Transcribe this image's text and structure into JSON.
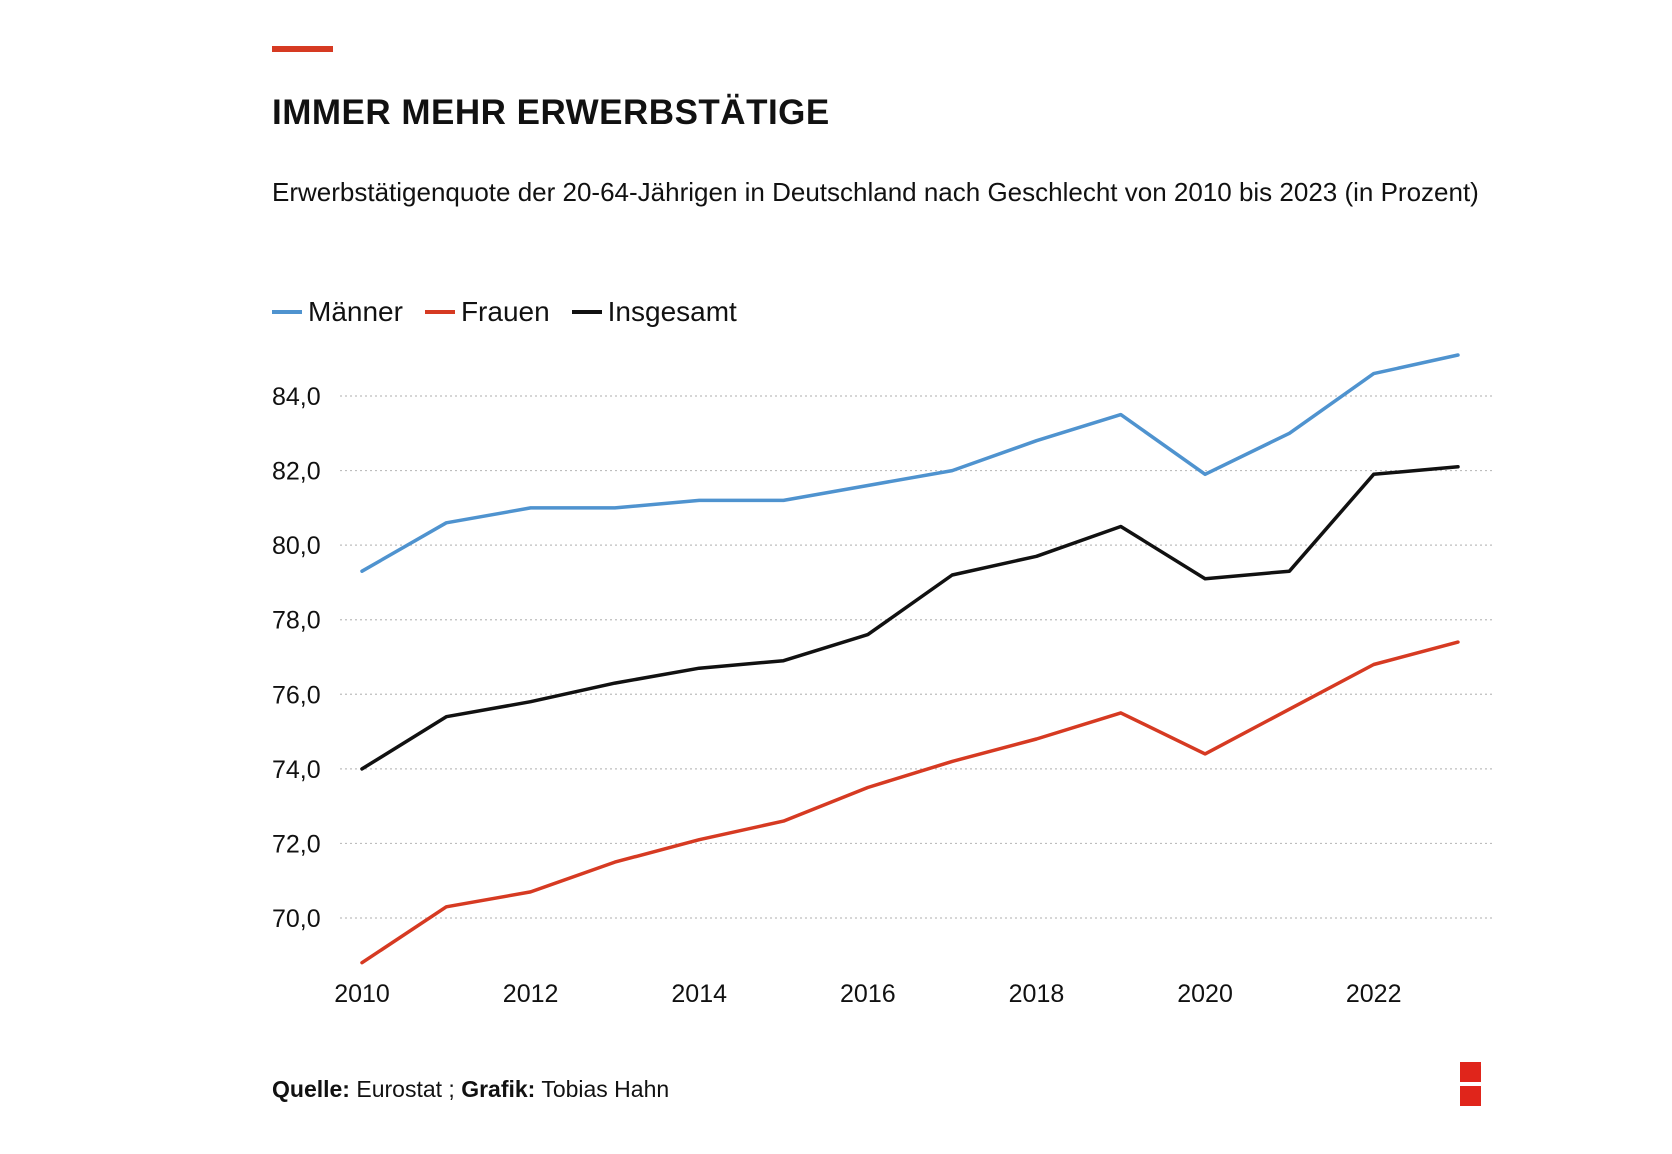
{
  "header": {
    "title": "IMMER MEHR ERWERBSTÄTIGE",
    "subtitle": "Erwerbstätigenquote der 20-64-Jährigen in Deutschland nach Geschlecht von 2010 bis 2023 (in Prozent)"
  },
  "footer": {
    "source_label": "Quelle:",
    "source_value": "Eurostat ;",
    "graphic_label": "Grafik:",
    "graphic_value": "Tobias Hahn"
  },
  "colors": {
    "accent": "#d63a22",
    "maenner": "#4f93cf",
    "frauen": "#d63a22",
    "insgesamt": "#111111",
    "logo": "#e0251b"
  },
  "chart_data": {
    "type": "line",
    "title": "IMMER MEHR ERWERBSTÄTIGE",
    "subtitle": "Erwerbstätigenquote der 20-64-Jährigen in Deutschland nach Geschlecht von 2010 bis 2023 (in Prozent)",
    "xlabel": "",
    "ylabel": "",
    "x": [
      2010,
      2011,
      2012,
      2013,
      2014,
      2015,
      2016,
      2017,
      2018,
      2019,
      2020,
      2021,
      2022,
      2023
    ],
    "xticks": [
      "2010",
      "2012",
      "2014",
      "2016",
      "2018",
      "2020",
      "2022"
    ],
    "xlim": [
      2010,
      2023
    ],
    "yticks": [
      "70,0",
      "72,0",
      "74,0",
      "76,0",
      "78,0",
      "80,0",
      "82,0",
      "84,0"
    ],
    "ylim": [
      68.8,
      85.1
    ],
    "grid": "horizontal-dotted",
    "legend_position": "top-left",
    "series": [
      {
        "name": "Männer",
        "color": "#4f93cf",
        "values": [
          79.3,
          80.6,
          81.0,
          81.0,
          81.2,
          81.2,
          81.6,
          82.0,
          82.8,
          83.5,
          81.9,
          83.0,
          84.6,
          85.1
        ]
      },
      {
        "name": "Frauen",
        "color": "#d63a22",
        "values": [
          68.8,
          70.3,
          70.7,
          71.5,
          72.1,
          72.6,
          73.5,
          74.2,
          74.8,
          75.5,
          74.4,
          75.6,
          76.8,
          77.4
        ]
      },
      {
        "name": "Insgesamt",
        "color": "#111111",
        "values": [
          74.0,
          75.4,
          75.8,
          76.3,
          76.7,
          76.9,
          77.6,
          79.2,
          79.7,
          80.5,
          79.1,
          79.3,
          81.9,
          82.1
        ]
      }
    ]
  }
}
